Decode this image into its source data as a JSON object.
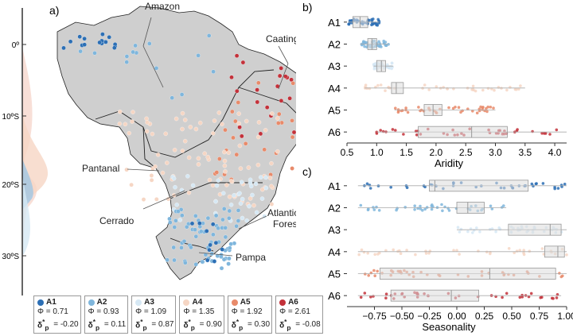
{
  "panel_labels": {
    "a": "a)",
    "b": "b)",
    "c": "c)"
  },
  "colors": {
    "A1": "#2c6fb5",
    "A2": "#7fb6dc",
    "A3": "#d6e8f4",
    "A4": "#f6d6c4",
    "A5": "#e88a6a",
    "A6": "#c3313a",
    "map": "#cfcfcf"
  },
  "map": {
    "biome_labels": [
      {
        "name": "Amazon"
      },
      {
        "name": "Caatinga"
      },
      {
        "name": "Pantanal"
      },
      {
        "name": "Cerrado"
      },
      {
        "name": "Atlantic\nForest"
      },
      {
        "name": "Pampa"
      }
    ],
    "lat_ticks": [
      "0º",
      "10ºS",
      "20ºS",
      "30ºS"
    ]
  },
  "legend": [
    {
      "id": "A1",
      "phi": "Φ = 0.71",
      "delta": "-0.20",
      "color": "#2c6fb5"
    },
    {
      "id": "A2",
      "phi": "Φ = 0.93",
      "delta": "0.11",
      "color": "#7fb6dc"
    },
    {
      "id": "A3",
      "phi": "Φ = 1.09",
      "delta": "0.87",
      "color": "#d6e8f4"
    },
    {
      "id": "A4",
      "phi": "Φ = 1.35",
      "delta": "0.90",
      "color": "#f6d6c4"
    },
    {
      "id": "A5",
      "phi": "Φ = 1.92",
      "delta": "0.30",
      "color": "#e88a6a"
    },
    {
      "id": "A6",
      "phi": "Φ = 2.61",
      "delta": "-0.08",
      "color": "#c3313a"
    }
  ],
  "legend_delta_prefix": "δ",
  "chart_data": [
    {
      "type": "box",
      "panel": "b",
      "categories": [
        "A1",
        "A2",
        "A3",
        "A4",
        "A5",
        "A6"
      ],
      "xlabel": "Aridity",
      "xlim": [
        0.5,
        4.2
      ],
      "xticks": [
        0.5,
        1.0,
        1.5,
        2.0,
        2.5,
        3.0,
        3.5,
        4.0
      ],
      "boxes": [
        {
          "q1": 0.6,
          "median": 0.72,
          "q3": 0.85,
          "min": 0.52,
          "max": 1.05
        },
        {
          "q1": 0.85,
          "median": 0.92,
          "q3": 1.0,
          "min": 0.72,
          "max": 1.2
        },
        {
          "q1": 1.0,
          "median": 1.08,
          "q3": 1.15,
          "min": 0.95,
          "max": 1.28
        },
        {
          "q1": 1.25,
          "median": 1.33,
          "q3": 1.45,
          "min": 0.8,
          "max": 3.5
        },
        {
          "q1": 1.8,
          "median": 1.95,
          "q3": 2.1,
          "min": 1.3,
          "max": 3.0
        },
        {
          "q1": 1.7,
          "median": 2.6,
          "q3": 3.2,
          "min": 1.0,
          "max": 4.2
        }
      ]
    },
    {
      "type": "box",
      "panel": "c",
      "categories": [
        "A1",
        "A2",
        "A3",
        "A4",
        "A5",
        "A6"
      ],
      "xlabel": "Seasonality",
      "xlim": [
        -1.0,
        1.0
      ],
      "xticks": [
        -0.75,
        -0.5,
        -0.25,
        0.0,
        0.25,
        0.5,
        0.75,
        1.0
      ],
      "xtick_labels": [
        "−0.75",
        "−0.50",
        "−0.25",
        "0.00",
        "0.25",
        "0.50",
        "0.75",
        "1.00"
      ],
      "boxes": [
        {
          "q1": -0.25,
          "median": -0.2,
          "q3": 0.65,
          "min": -0.9,
          "max": 1.0
        },
        {
          "q1": 0.0,
          "median": 0.1,
          "q3": 0.25,
          "min": -0.9,
          "max": 0.45
        },
        {
          "q1": 0.47,
          "median": 0.85,
          "q3": 0.95,
          "min": 0.0,
          "max": 1.0
        },
        {
          "q1": 0.8,
          "median": 0.92,
          "q3": 0.98,
          "min": -0.9,
          "max": 1.0
        },
        {
          "q1": -0.7,
          "median": 0.3,
          "q3": 0.9,
          "min": -0.9,
          "max": 1.0
        },
        {
          "q1": -0.6,
          "median": -0.05,
          "q3": 0.2,
          "min": -0.9,
          "max": 0.95
        }
      ]
    }
  ]
}
